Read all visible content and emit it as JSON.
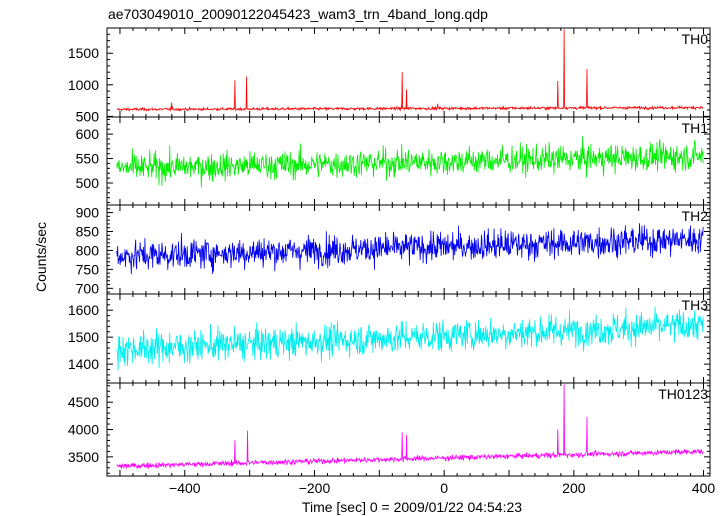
{
  "chart_data": {
    "type": "line",
    "title": "ae703049010_20090122045423_wam3_trn_4band_long.qdp",
    "xlabel": "Time [sec] 0 = 2009/01/22 04:54:23",
    "ylabel": "Counts/sec",
    "xlim": [
      -520,
      410
    ],
    "xticks": [
      -400,
      -200,
      0,
      200,
      400
    ],
    "x_tick_labels": [
      "−400",
      "−200",
      "0",
      "200",
      "400"
    ],
    "x_start": -505,
    "x_end": 400,
    "panels": [
      {
        "name": "TH0",
        "color": "#ff0000",
        "ylim": [
          490,
          1900
        ],
        "yticks": [
          500,
          1000,
          1500
        ],
        "trend": [
          [
            -505,
            610
          ],
          [
            400,
            640
          ]
        ],
        "noise": 15,
        "spikes": [
          [
            -420,
            720
          ],
          [
            -323,
            1070
          ],
          [
            -305,
            1130
          ],
          [
            -65,
            1200
          ],
          [
            -58,
            930
          ],
          [
            -10,
            700
          ],
          [
            175,
            1060
          ],
          [
            185,
            1880
          ],
          [
            220,
            1250
          ]
        ]
      },
      {
        "name": "TH1",
        "color": "#00ee00",
        "ylim": [
          455,
          635
        ],
        "yticks": [
          500,
          550,
          600
        ],
        "trend": [
          [
            -505,
            530
          ],
          [
            400,
            555
          ]
        ],
        "noise": 20,
        "spikes": []
      },
      {
        "name": "TH2",
        "color": "#0000ee",
        "ylim": [
          685,
          920
        ],
        "yticks": [
          700,
          750,
          800,
          850,
          900
        ],
        "trend": [
          [
            -505,
            785
          ],
          [
            400,
            830
          ]
        ],
        "noise": 28,
        "spikes": []
      },
      {
        "name": "TH3",
        "color": "#00eeee",
        "ylim": [
          1330,
          1660
        ],
        "yticks": [
          1400,
          1500,
          1600
        ],
        "trend": [
          [
            -505,
            1455
          ],
          [
            400,
            1545
          ]
        ],
        "noise": 42,
        "spikes": []
      },
      {
        "name": "TH0123",
        "color": "#ff00ff",
        "ylim": [
          3150,
          4850
        ],
        "yticks": [
          3500,
          4000,
          4500
        ],
        "trend": [
          [
            -505,
            3330
          ],
          [
            400,
            3600
          ]
        ],
        "noise": 35,
        "spikes": [
          [
            -323,
            3800
          ],
          [
            -303,
            3980
          ],
          [
            -65,
            3950
          ],
          [
            -58,
            3900
          ],
          [
            175,
            4000
          ],
          [
            185,
            4830
          ],
          [
            220,
            4230
          ]
        ]
      }
    ]
  }
}
